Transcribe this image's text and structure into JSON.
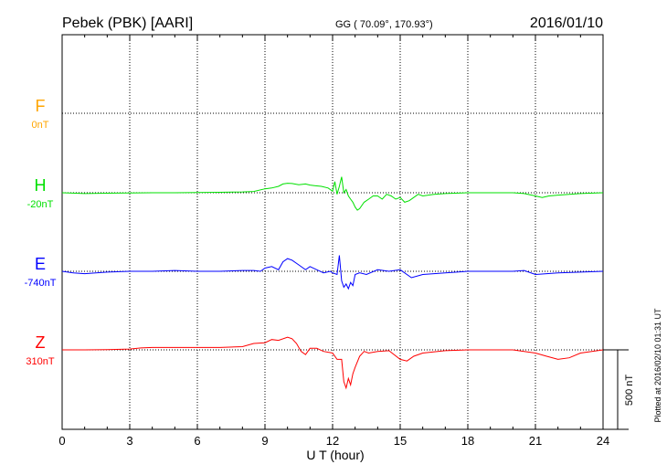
{
  "chart_data": {
    "type": "line",
    "title": "Pebek (PBK)  [AARI]",
    "subtitle": "GG ( 70.09°, 170.93°)",
    "date": "2016/01/10",
    "xlabel": "U T (hour)",
    "xlim": [
      0,
      24
    ],
    "xticks": [
      "0",
      "3",
      "6",
      "9",
      "12",
      "15",
      "18",
      "21",
      "24"
    ],
    "scale_label": "500 nT",
    "plotted_note": "Plotted at 2016/02/10 01:31  UT",
    "colors": {
      "F": "#ffa500",
      "H": "#00e000",
      "E": "#0000ff",
      "Z": "#ff0000"
    },
    "series": [
      {
        "name": "F",
        "baseline": "0nT",
        "x": [],
        "values": []
      },
      {
        "name": "H",
        "baseline": "-20nT",
        "x": [
          0,
          1,
          2,
          3,
          4,
          5,
          6,
          7,
          8,
          8.5,
          9,
          9.3,
          9.6,
          9.8,
          10,
          10.2,
          10.5,
          10.8,
          11,
          11.2,
          11.5,
          11.8,
          12.0,
          12.1,
          12.2,
          12.3,
          12.4,
          12.5,
          12.6,
          12.7,
          12.8,
          12.9,
          13.0,
          13.1,
          13.2,
          13.4,
          13.6,
          13.8,
          14.0,
          14.2,
          14.4,
          14.6,
          14.8,
          15.0,
          15.2,
          15.4,
          15.6,
          15.8,
          16,
          16.5,
          17,
          18,
          19,
          20,
          20.5,
          21,
          21.3,
          21.6,
          22,
          22.5,
          23,
          24
        ],
        "values": [
          0,
          -5,
          -3,
          -2,
          0,
          0,
          2,
          3,
          5,
          8,
          25,
          30,
          40,
          55,
          60,
          58,
          50,
          55,
          48,
          45,
          40,
          30,
          10,
          70,
          -10,
          40,
          100,
          0,
          20,
          -20,
          -40,
          -60,
          -90,
          -110,
          -100,
          -60,
          -40,
          -20,
          -20,
          -40,
          -10,
          -20,
          -40,
          -30,
          -60,
          -50,
          -30,
          -10,
          -20,
          -10,
          -5,
          0,
          0,
          0,
          -5,
          -20,
          -30,
          -20,
          -15,
          -10,
          -5,
          0
        ]
      },
      {
        "name": "E",
        "baseline": "-740nT",
        "x": [
          0,
          0.5,
          1,
          1.5,
          2,
          3,
          4,
          5,
          6,
          7,
          8,
          8.5,
          8.8,
          9.0,
          9.3,
          9.6,
          9.8,
          10.0,
          10.2,
          10.5,
          10.8,
          11.0,
          11.3,
          11.6,
          11.9,
          12.0,
          12.2,
          12.3,
          12.4,
          12.5,
          12.6,
          12.7,
          12.8,
          12.9,
          13.0,
          13.2,
          13.5,
          14,
          14.5,
          15,
          15.5,
          16,
          17,
          18,
          19,
          20,
          20.5,
          21,
          22,
          23,
          24
        ],
        "values": [
          0,
          -10,
          -15,
          -10,
          -5,
          0,
          0,
          5,
          0,
          0,
          5,
          5,
          0,
          20,
          30,
          10,
          60,
          80,
          70,
          40,
          10,
          30,
          10,
          -10,
          0,
          -10,
          -20,
          100,
          -60,
          -100,
          -80,
          -110,
          -70,
          -90,
          -20,
          -10,
          -20,
          10,
          0,
          10,
          -40,
          -20,
          -10,
          0,
          0,
          0,
          5,
          -20,
          -10,
          -5,
          0
        ]
      },
      {
        "name": "Z",
        "baseline": "310nT",
        "x": [
          0,
          1,
          2,
          3,
          3.5,
          4,
          5,
          6,
          7,
          8,
          8.5,
          9,
          9.3,
          9.6,
          10.0,
          10.2,
          10.4,
          10.6,
          10.8,
          11.0,
          11.3,
          11.6,
          12.0,
          12.2,
          12.4,
          12.5,
          12.6,
          12.7,
          12.8,
          12.9,
          13.0,
          13.2,
          13.4,
          13.6,
          14,
          14.5,
          15,
          15.3,
          15.6,
          16,
          17,
          18,
          19,
          20,
          21,
          21.5,
          22,
          22.5,
          23,
          24
        ],
        "values": [
          0,
          0,
          2,
          5,
          12,
          15,
          15,
          15,
          15,
          20,
          40,
          45,
          65,
          60,
          80,
          70,
          40,
          -10,
          -30,
          10,
          10,
          -10,
          -20,
          -60,
          -60,
          -200,
          -240,
          -180,
          -220,
          -150,
          -110,
          -40,
          -10,
          -20,
          -10,
          -5,
          -60,
          -70,
          -40,
          -20,
          -5,
          0,
          0,
          0,
          -20,
          -40,
          -60,
          -50,
          -20,
          0
        ]
      }
    ]
  }
}
